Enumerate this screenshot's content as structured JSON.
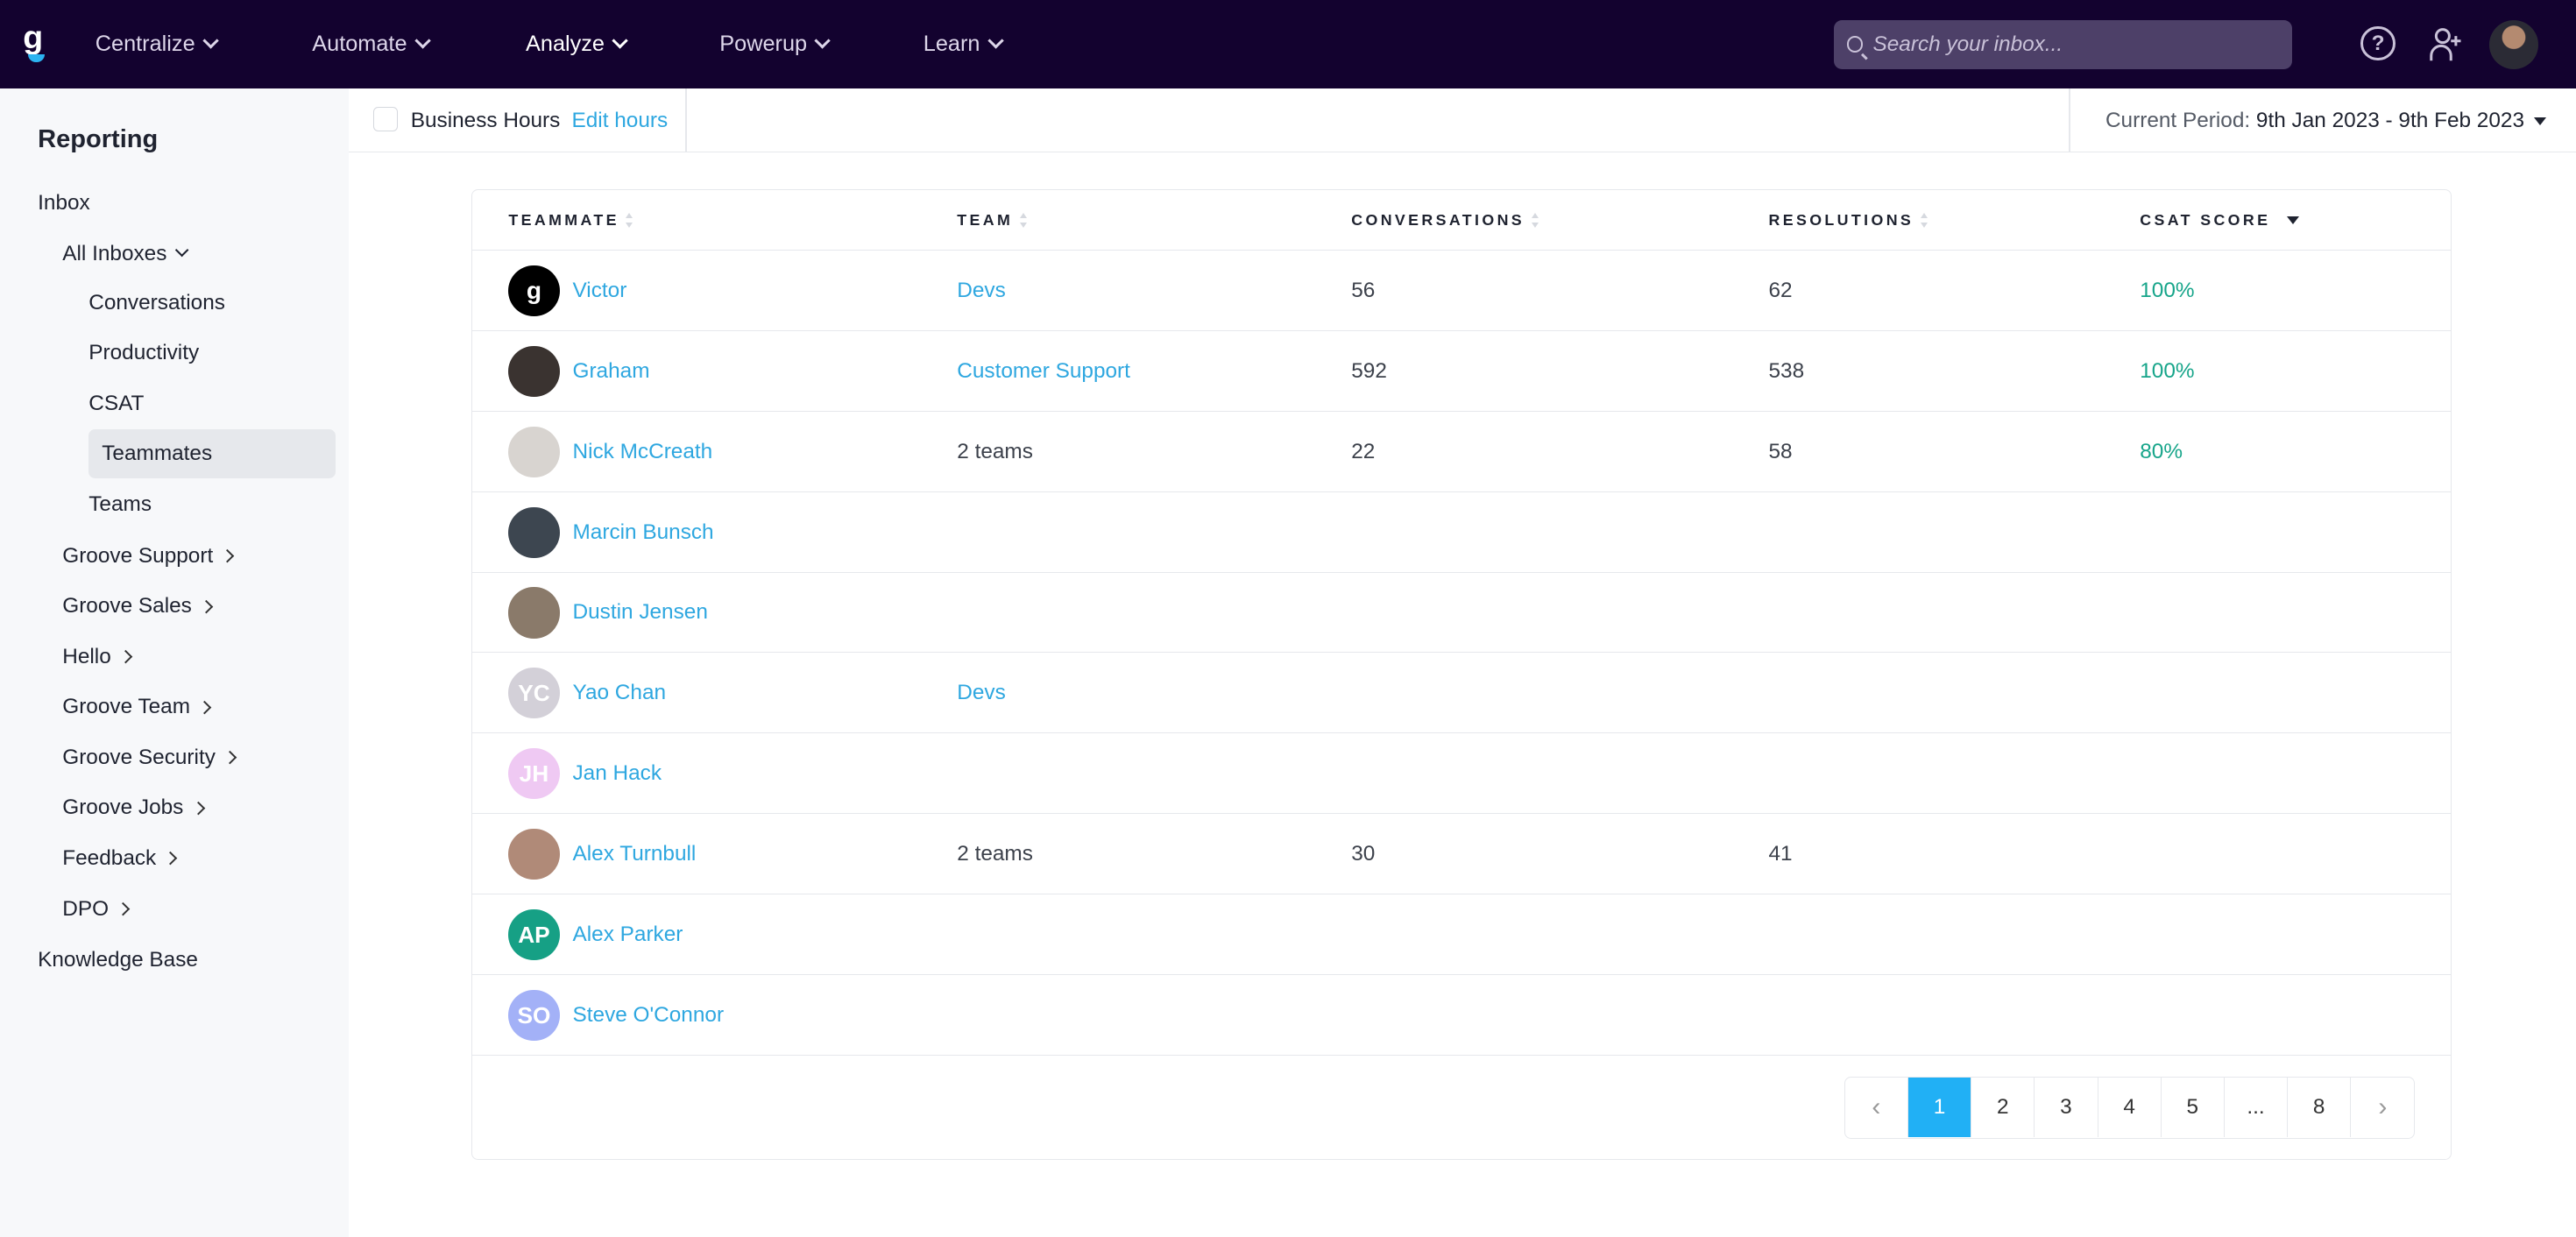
{
  "nav": {
    "logo": "g",
    "items": [
      {
        "label": "Centralize"
      },
      {
        "label": "Automate"
      },
      {
        "label": "Analyze",
        "active": true
      },
      {
        "label": "Powerup"
      },
      {
        "label": "Learn"
      }
    ],
    "search_placeholder": "Search your inbox...",
    "help_icon": "?"
  },
  "sidebar": {
    "title": "Reporting",
    "inbox": "Inbox",
    "all_inboxes": "All Inboxes",
    "sub": [
      "Conversations",
      "Productivity",
      "CSAT",
      "Teammates",
      "Teams"
    ],
    "active": "Teammates",
    "groups": [
      "Groove Support",
      "Groove Sales",
      "Hello",
      "Groove Team",
      "Groove Security",
      "Groove Jobs",
      "Feedback",
      "DPO"
    ],
    "knowledge_base": "Knowledge Base"
  },
  "toolbar": {
    "business_hours": "Business Hours",
    "edit_hours": "Edit hours",
    "period_label": "Current Period:",
    "period_value": "9th Jan 2023 - 9th Feb 2023"
  },
  "table": {
    "headers": [
      "TEAMMATE",
      "TEAM",
      "CONVERSATIONS",
      "RESOLUTIONS",
      "CSAT SCORE"
    ],
    "rows": [
      {
        "name": "Victor",
        "initials": "",
        "avatar_color": "#000000",
        "team": "Devs",
        "team_link": true,
        "conversations": "56",
        "resolutions": "62",
        "csat": "100%"
      },
      {
        "name": "Graham",
        "initials": "",
        "avatar_color": "#3a3330",
        "team": "Customer Support",
        "team_link": true,
        "conversations": "592",
        "resolutions": "538",
        "csat": "100%"
      },
      {
        "name": "Nick McCreath",
        "initials": "",
        "avatar_color": "#d8d4d0",
        "team": "2 teams",
        "team_link": false,
        "conversations": "22",
        "resolutions": "58",
        "csat": "80%"
      },
      {
        "name": "Marcin Bunsch",
        "initials": "",
        "avatar_color": "#3d4650",
        "team": "",
        "conversations": "",
        "resolutions": "",
        "csat": ""
      },
      {
        "name": "Dustin Jensen",
        "initials": "",
        "avatar_color": "#8a7a6a",
        "team": "",
        "conversations": "",
        "resolutions": "",
        "csat": ""
      },
      {
        "name": "Yao Chan",
        "initials": "YC",
        "avatar_color": "#d3d0d8",
        "team": "Devs",
        "team_link": true,
        "conversations": "",
        "resolutions": "",
        "csat": ""
      },
      {
        "name": "Jan Hack",
        "initials": "JH",
        "avatar_color": "#efc9f3",
        "team": "",
        "conversations": "",
        "resolutions": "",
        "csat": ""
      },
      {
        "name": "Alex Turnbull",
        "initials": "",
        "avatar_color": "#b08a78",
        "team": "2 teams",
        "team_link": false,
        "conversations": "30",
        "resolutions": "41",
        "csat": ""
      },
      {
        "name": "Alex Parker",
        "initials": "AP",
        "avatar_color": "#16a085",
        "team": "",
        "conversations": "",
        "resolutions": "",
        "csat": ""
      },
      {
        "name": "Steve O'Connor",
        "initials": "SO",
        "avatar_color": "#a3b1f7",
        "team": "",
        "conversations": "",
        "resolutions": "",
        "csat": ""
      }
    ]
  },
  "pagination": {
    "prev": "‹",
    "pages": [
      "1",
      "2",
      "3",
      "4",
      "5",
      "...",
      "8"
    ],
    "current": "1",
    "next": "›"
  },
  "colors": {
    "nav_bg": "#13022f",
    "link": "#2ea7e0",
    "csat": "#17a58a",
    "active_page": "#21b0f5"
  }
}
